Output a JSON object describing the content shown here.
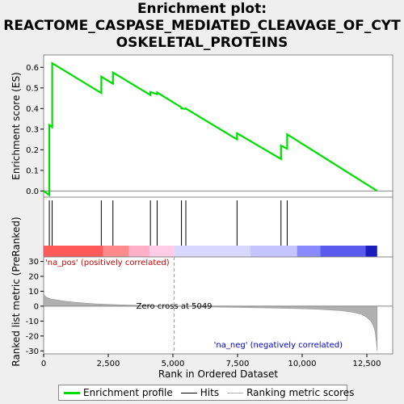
{
  "title_lines": [
    "Enrichment plot:",
    "REACTOME_CASPASE_MEDIATED_CLEAVAGE_OF_CYT",
    "OSKELETAL_PROTEINS"
  ],
  "colors": {
    "es_line": "#00dd00",
    "hits": "#000000",
    "metric": "#b0b0b0",
    "zero_line": "#888888",
    "pos_text": "#cc0000",
    "neg_text": "#0000cc"
  },
  "chart_data": {
    "type": "line",
    "top_panel": {
      "ylabel": "Enrichment score (ES)",
      "ylim": [
        -0.03,
        0.66
      ],
      "yticks": [
        0.0,
        0.1,
        0.2,
        0.3,
        0.4,
        0.5,
        0.6
      ],
      "ytick_labels": [
        "0.0",
        "0.1",
        "0.2",
        "0.3",
        "0.4",
        "0.5",
        "0.6"
      ],
      "series": [
        {
          "name": "Enrichment profile",
          "x": [
            0,
            220,
            220,
            330,
            330,
            2230,
            2230,
            2680,
            2680,
            4130,
            4130,
            4390,
            4390,
            5330,
            5330,
            5500,
            5500,
            7480,
            7480,
            9180,
            9180,
            9420,
            9420,
            12900
          ],
          "y": [
            0.0,
            -0.02,
            0.32,
            0.31,
            0.62,
            0.475,
            0.555,
            0.52,
            0.575,
            0.465,
            0.48,
            0.47,
            0.478,
            0.405,
            0.4,
            0.398,
            0.4,
            0.25,
            0.28,
            0.155,
            0.22,
            0.205,
            0.275,
            0.0
          ]
        }
      ]
    },
    "hits": {
      "name": "Hits",
      "x": [
        220,
        330,
        2230,
        2680,
        4130,
        4390,
        5330,
        5500,
        7480,
        9180,
        9420
      ]
    },
    "bottom_panel": {
      "ylabel": "Ranked list metric (PreRanked)",
      "ylim": [
        -32,
        33
      ],
      "yticks": [
        30,
        20,
        10,
        0,
        -10,
        -20,
        -30
      ],
      "ytick_labels": [
        "30",
        "20",
        "10",
        "0",
        "-10",
        "-20",
        "-30"
      ],
      "series": [
        {
          "name": "Ranking metric scores",
          "x": [
            0,
            100,
            300,
            700,
            1200,
            2000,
            3000,
            4000,
            5049,
            6000,
            7500,
            9000,
            10500,
            11500,
            12000,
            12300,
            12500,
            12650,
            12750,
            12820,
            12870,
            12900
          ],
          "y": [
            8,
            6,
            4.8,
            3.6,
            2.6,
            1.6,
            0.9,
            0.4,
            0,
            -0.4,
            -0.8,
            -1.3,
            -2.0,
            -3.0,
            -4.2,
            -5.5,
            -7.5,
            -10,
            -13,
            -17,
            -24,
            -30
          ]
        }
      ],
      "zero_cross_x": 5049,
      "annotations": {
        "zero_cross": "Zero cross at 5049",
        "pos": "'na_pos' (positively correlated)",
        "neg": "'na_neg' (negatively correlated)"
      }
    },
    "xlabel": "Rank in Ordered Dataset",
    "xlim": [
      0,
      13500
    ],
    "xticks": [
      0,
      2500,
      5000,
      7500,
      10000,
      12500
    ],
    "xtick_labels": [
      "0",
      "2,500",
      "5,000",
      "7,500",
      "10,000",
      "12,500"
    ],
    "heat_bar": [
      {
        "from": 0,
        "to": 2300,
        "color": "#ff5a5a"
      },
      {
        "from": 2300,
        "to": 3300,
        "color": "#ff8a8a"
      },
      {
        "from": 3300,
        "to": 4100,
        "color": "#ffb0c8"
      },
      {
        "from": 4100,
        "to": 5049,
        "color": "#ffcce6"
      },
      {
        "from": 5049,
        "to": 8000,
        "color": "#d8d8ff"
      },
      {
        "from": 8000,
        "to": 9800,
        "color": "#c4c4ff"
      },
      {
        "from": 9800,
        "to": 10700,
        "color": "#8a8aff"
      },
      {
        "from": 10700,
        "to": 12450,
        "color": "#5a5aee"
      },
      {
        "from": 12450,
        "to": 12900,
        "color": "#1c1cbe"
      }
    ],
    "legend": {
      "position": "bottom",
      "items": [
        "Enrichment profile",
        "Hits",
        "Ranking metric scores"
      ]
    }
  }
}
